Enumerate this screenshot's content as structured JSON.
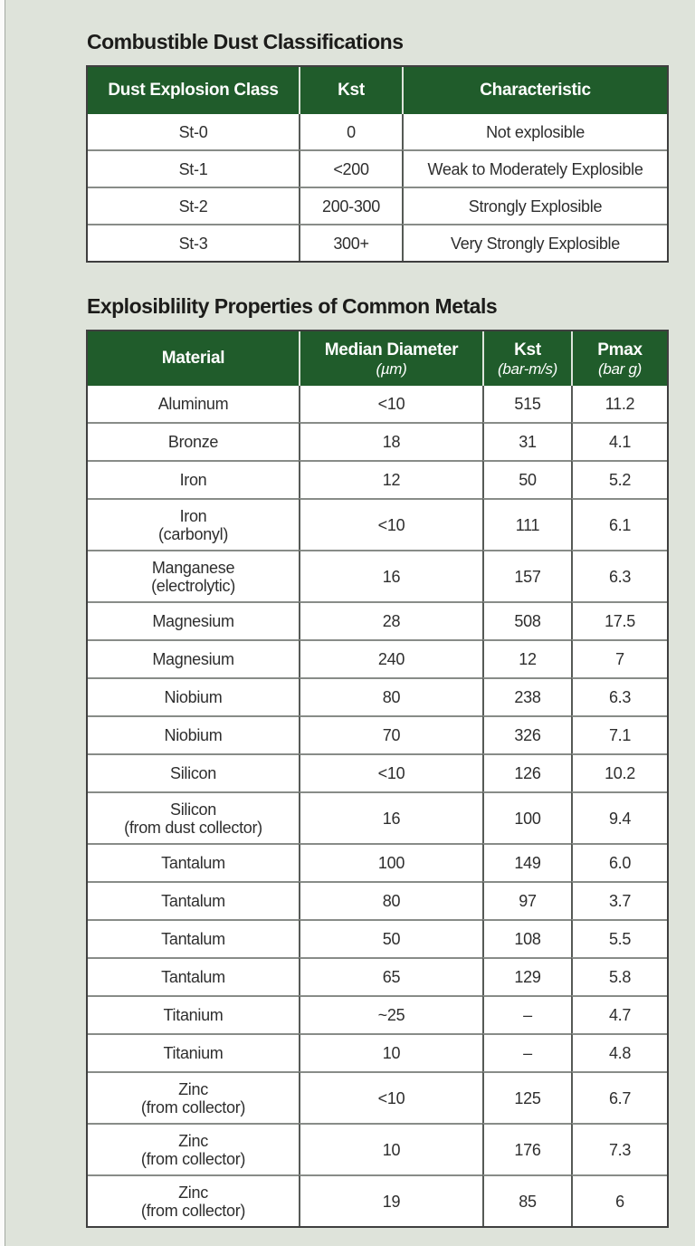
{
  "page": {
    "background": "#dee3da",
    "header_green": "#205c2b",
    "title_color": "#1c1c1a",
    "header_text_color": "#ffffff"
  },
  "classification_table": {
    "title": "Combustible Dust Classifications",
    "columns": [
      "Dust Explosion Class",
      "Kst",
      "Characteristic"
    ],
    "rows": [
      [
        "St-0",
        "0",
        "Not explosible"
      ],
      [
        "St-1",
        "<200",
        "Weak to Moderately Explosible"
      ],
      [
        "St-2",
        "200-300",
        "Strongly Explosible"
      ],
      [
        "St-3",
        "300+",
        "Very Strongly Explosible"
      ]
    ]
  },
  "metals_table": {
    "title": "Explosiblility Properties of Common Metals",
    "columns": [
      {
        "label": "Material",
        "unit": ""
      },
      {
        "label": "Median Diameter",
        "unit": "(µm)"
      },
      {
        "label": "Kst",
        "unit": "(bar-m/s)"
      },
      {
        "label": "Pmax",
        "unit": "(bar g)"
      }
    ],
    "rows": [
      [
        "Aluminum",
        "<10",
        "515",
        "11.2"
      ],
      [
        "Bronze",
        "18",
        "31",
        "4.1"
      ],
      [
        "Iron",
        "12",
        "50",
        "5.2"
      ],
      [
        [
          "Iron",
          "(carbonyl)"
        ],
        "<10",
        "111",
        "6.1"
      ],
      [
        [
          "Manganese",
          "(electrolytic)"
        ],
        "16",
        "157",
        "6.3"
      ],
      [
        "Magnesium",
        "28",
        "508",
        "17.5"
      ],
      [
        "Magnesium",
        "240",
        "12",
        "7"
      ],
      [
        "Niobium",
        "80",
        "238",
        "6.3"
      ],
      [
        "Niobium",
        "70",
        "326",
        "7.1"
      ],
      [
        "Silicon",
        "<10",
        "126",
        "10.2"
      ],
      [
        [
          "Silicon",
          "(from dust collector)"
        ],
        "16",
        "100",
        "9.4"
      ],
      [
        "Tantalum",
        "100",
        "149",
        "6.0"
      ],
      [
        "Tantalum",
        "80",
        "97",
        "3.7"
      ],
      [
        "Tantalum",
        "50",
        "108",
        "5.5"
      ],
      [
        "Tantalum",
        "65",
        "129",
        "5.8"
      ],
      [
        "Titanium",
        "~25",
        "–",
        "4.7"
      ],
      [
        "Titanium",
        "10",
        "–",
        "4.8"
      ],
      [
        [
          "Zinc",
          "(from collector)"
        ],
        "<10",
        "125",
        "6.7"
      ],
      [
        [
          "Zinc",
          "(from collector)"
        ],
        "10",
        "176",
        "7.3"
      ],
      [
        [
          "Zinc",
          "(from collector)"
        ],
        "19",
        "85",
        "6"
      ]
    ]
  }
}
